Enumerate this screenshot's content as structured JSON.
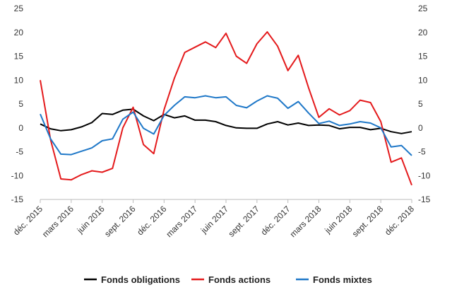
{
  "chart_data": {
    "type": "line",
    "x": [
      "déc. 2015",
      "janv. 2016",
      "févr. 2016",
      "mars 2016",
      "avr. 2016",
      "mai 2016",
      "juin 2016",
      "juil. 2016",
      "août 2016",
      "sept. 2016",
      "oct. 2016",
      "nov. 2016",
      "déc. 2016",
      "janv. 2017",
      "févr. 2017",
      "mars 2017",
      "avr. 2017",
      "mai 2017",
      "juin 2017",
      "juil. 2017",
      "août 2017",
      "sept. 2017",
      "oct. 2017",
      "nov. 2017",
      "déc. 2017",
      "janv. 2018",
      "févr. 2018",
      "mars 2018",
      "avr. 2018",
      "mai 2018",
      "juin 2018",
      "juil. 2018",
      "août 2018",
      "sept. 2018",
      "oct. 2018",
      "nov. 2018",
      "déc. 2018"
    ],
    "x_tick_labels": [
      "déc. 2015",
      "mars 2016",
      "juin 2016",
      "sept. 2016",
      "déc. 2016",
      "mars 2017",
      "juin 2017",
      "sept. 2017",
      "déc. 2017",
      "mars 2018",
      "juin 2018",
      "sept. 2018",
      "déc. 2018"
    ],
    "ylim": [
      -15,
      25
    ],
    "y_ticks": [
      -15,
      -10,
      -5,
      0,
      5,
      10,
      15,
      20,
      25
    ],
    "grid": false,
    "legend_position": "bottom",
    "series": [
      {
        "name": "Fonds obligations",
        "color": "#000000",
        "values": [
          0.8,
          -0.2,
          -0.6,
          -0.4,
          0.2,
          1.1,
          3.0,
          2.8,
          3.7,
          3.9,
          2.5,
          1.5,
          2.8,
          2.1,
          2.5,
          1.6,
          1.6,
          1.3,
          0.5,
          0.0,
          -0.1,
          -0.1,
          0.8,
          1.3,
          0.6,
          1.0,
          0.5,
          0.6,
          0.5,
          -0.2,
          0.1,
          0.1,
          -0.4,
          -0.1,
          -0.8,
          -1.2,
          -0.8
        ]
      },
      {
        "name": "Fonds actions",
        "color": "#e41a1c",
        "values": [
          10.0,
          -2.5,
          -10.7,
          -10.9,
          -9.8,
          -9.0,
          -9.3,
          -8.5,
          0.0,
          4.3,
          -3.5,
          -5.4,
          3.8,
          10.4,
          15.8,
          16.9,
          18.0,
          16.8,
          19.8,
          15.0,
          13.5,
          17.6,
          20.1,
          17.1,
          12.0,
          15.2,
          8.4,
          2.2,
          4.0,
          2.7,
          3.6,
          5.8,
          5.3,
          1.3,
          -7.2,
          -6.3,
          -12.0
        ]
      },
      {
        "name": "Fonds mixtes",
        "color": "#1f78c8",
        "values": [
          2.9,
          -2.3,
          -5.5,
          -5.6,
          -4.9,
          -4.2,
          -2.7,
          -2.3,
          1.8,
          3.3,
          -0.1,
          -1.3,
          2.6,
          4.7,
          6.5,
          6.3,
          6.7,
          6.3,
          6.5,
          4.7,
          4.2,
          5.6,
          6.7,
          6.2,
          4.1,
          5.5,
          3.1,
          0.9,
          1.4,
          0.5,
          0.8,
          1.3,
          1.0,
          0.0,
          -4.0,
          -3.7,
          -5.8
        ]
      }
    ]
  }
}
